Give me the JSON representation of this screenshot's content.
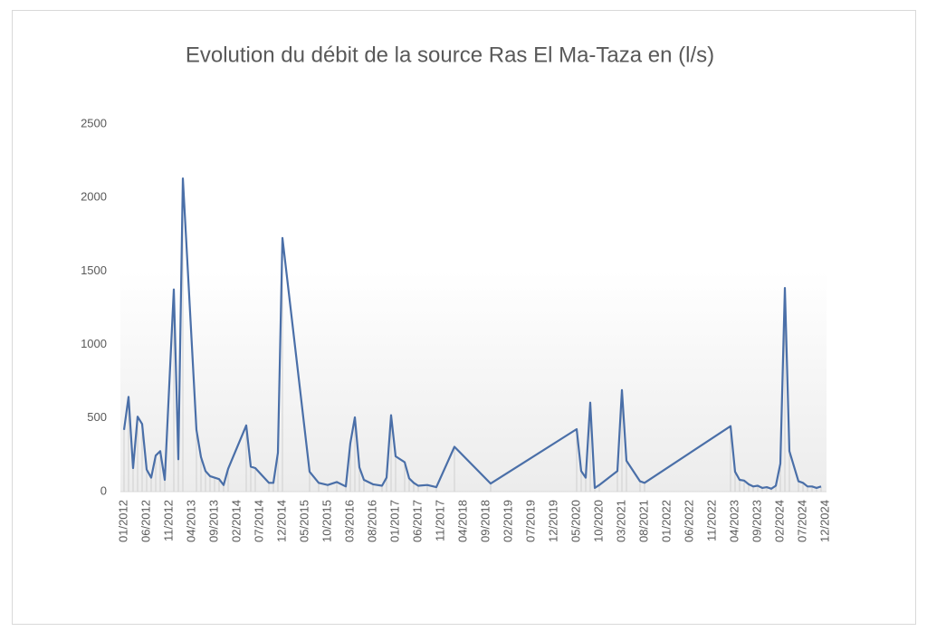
{
  "chart_data": {
    "type": "line",
    "title": "Evolution du débit de la source Ras El Ma-Taza en (l/s)",
    "color": "#4a6fa8",
    "x": [
      "01/2012",
      "02/2012",
      "03/2012",
      "04/2012",
      "05/2012",
      "06/2012",
      "07/2012",
      "08/2012",
      "09/2012",
      "10/2012",
      "12/2012",
      "01/2013",
      "02/2013",
      "05/2013",
      "06/2013",
      "07/2013",
      "08/2013",
      "09/2013",
      "10/2013",
      "11/2013",
      "12/2013",
      "04/2014",
      "05/2014",
      "06/2014",
      "09/2014",
      "10/2014",
      "11/2014",
      "12/2014",
      "06/2015",
      "08/2015",
      "10/2015",
      "12/2015",
      "02/2016",
      "03/2016",
      "04/2016",
      "05/2016",
      "06/2016",
      "08/2016",
      "10/2016",
      "11/2016",
      "12/2016",
      "01/2017",
      "03/2017",
      "04/2017",
      "05/2017",
      "06/2017",
      "08/2017",
      "10/2017",
      "02/2018",
      "10/2018",
      "05/2020",
      "06/2020",
      "07/2020",
      "08/2020",
      "09/2020",
      "10/2020",
      "02/2021",
      "03/2021",
      "04/2021",
      "07/2021",
      "08/2021",
      "03/2023",
      "04/2023",
      "05/2023",
      "06/2023",
      "07/2023",
      "08/2023",
      "09/2023",
      "10/2023",
      "11/2023",
      "12/2023",
      "01/2024",
      "02/2024",
      "03/2024",
      "04/2024",
      "06/2024",
      "07/2024",
      "08/2024",
      "09/2024",
      "10/2024",
      "11/2024"
    ],
    "values": [
      420,
      645,
      160,
      510,
      460,
      150,
      95,
      245,
      275,
      80,
      1375,
      220,
      2130,
      420,
      235,
      140,
      105,
      95,
      85,
      45,
      155,
      450,
      170,
      160,
      60,
      60,
      265,
      1725,
      135,
      60,
      45,
      65,
      35,
      330,
      505,
      165,
      80,
      50,
      40,
      95,
      520,
      240,
      200,
      90,
      60,
      40,
      45,
      30,
      305,
      55,
      425,
      140,
      95,
      605,
      25,
      45,
      140,
      690,
      210,
      70,
      60,
      445,
      135,
      80,
      75,
      50,
      35,
      40,
      25,
      30,
      20,
      40,
      190,
      1385,
      275,
      70,
      60,
      35,
      35,
      25,
      35
    ],
    "xlim": [
      "01/2012",
      "12/2024"
    ],
    "xticks": [
      "01/2012",
      "06/2012",
      "11/2012",
      "04/2013",
      "09/2013",
      "02/2014",
      "07/2014",
      "12/2014",
      "05/2015",
      "10/2015",
      "03/2016",
      "08/2016",
      "01/2017",
      "06/2017",
      "11/2017",
      "04/2018",
      "09/2018",
      "02/2019",
      "07/2019",
      "12/2019",
      "05/2020",
      "10/2020",
      "03/2021",
      "08/2021",
      "01/2022",
      "06/2022",
      "11/2022",
      "04/2023",
      "09/2023",
      "02/2024",
      "07/2024",
      "12/2024"
    ],
    "ylim": [
      0,
      2500
    ],
    "yticks": [
      0,
      500,
      1000,
      1500,
      2000,
      2500
    ],
    "grid": false
  }
}
